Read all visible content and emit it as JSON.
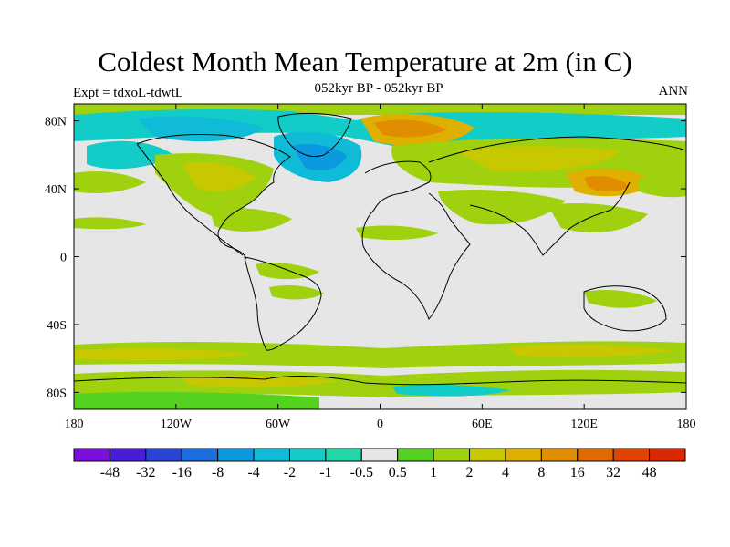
{
  "figure": {
    "title": "Coldest Month Mean Temperature at 2m (in C)",
    "subtitle": "052kyr BP - 052kyr BP",
    "left_label": "Expt = tdxoL-tdwtL",
    "right_label": "ANN"
  },
  "map": {
    "projection": "cylindrical equidistant",
    "lon_range": [
      -180,
      180
    ],
    "lat_range": [
      -90,
      90
    ],
    "lon_ticks": [
      {
        "value": -180,
        "label": "180"
      },
      {
        "value": -120,
        "label": "120W"
      },
      {
        "value": -60,
        "label": "60W"
      },
      {
        "value": 0,
        "label": "0"
      },
      {
        "value": 60,
        "label": "60E"
      },
      {
        "value": 120,
        "label": "120E"
      },
      {
        "value": 180,
        "label": "180"
      }
    ],
    "lat_ticks": [
      {
        "value": 80,
        "label": "80N"
      },
      {
        "value": 40,
        "label": "40N"
      },
      {
        "value": 0,
        "label": "0"
      },
      {
        "value": -40,
        "label": "40S"
      },
      {
        "value": -80,
        "label": "80S"
      }
    ],
    "background_color": "#e6e6e6"
  },
  "colorbar": {
    "labels": [
      "-48",
      "-32",
      "-16",
      "-8",
      "-4",
      "-2",
      "-1",
      "-0.5",
      "0.5",
      "1",
      "2",
      "4",
      "8",
      "16",
      "32",
      "48"
    ],
    "colors": [
      "#7b0fdc",
      "#4a1cd8",
      "#2a44d6",
      "#1a6ee0",
      "#0b99df",
      "#0fbbd6",
      "#12ccc8",
      "#21d9a8",
      "#e6e6e6",
      "#55d11f",
      "#9fd10f",
      "#c8c800",
      "#e0b000",
      "#e08d00",
      "#e06a00",
      "#e04400",
      "#dc2800"
    ]
  }
}
